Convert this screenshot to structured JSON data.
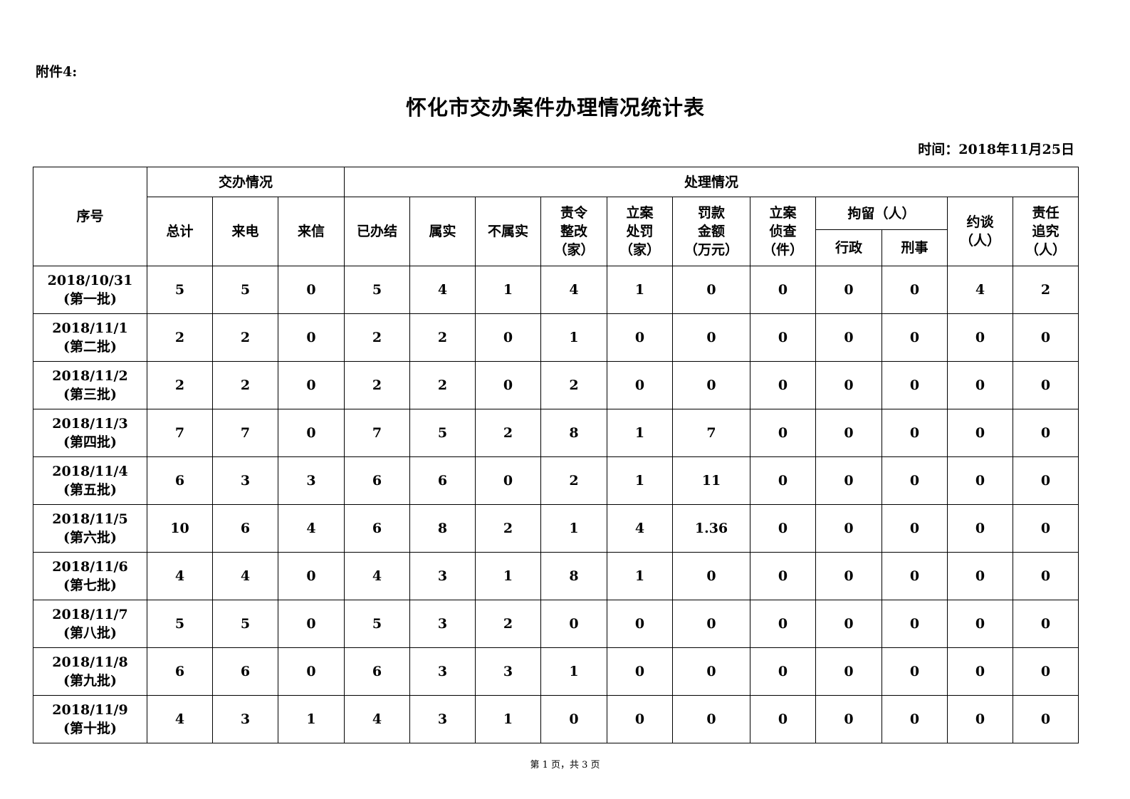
{
  "attachment_label": "附件4:",
  "title": "怀化市交办案件办理情况统计表",
  "date_label": "时间：2018年11月25日",
  "headers": {
    "seq": "序号",
    "assigned_group": "交办情况",
    "handled_group": "处理情况",
    "total": "总计",
    "phone": "来电",
    "letter": "来信",
    "closed": "已办结",
    "true": "属实",
    "not_true": "不属实",
    "ordered_rectify": "责令\n整改\n（家）",
    "case_penalty": "立案\n处罚\n（家）",
    "fine_amount": "罚款\n金额\n（万元）",
    "case_investigate": "立案\n侦查\n（件）",
    "detention_group": "拘留（人）",
    "admin": "行政",
    "criminal": "刑事",
    "interview": "约谈\n（人）",
    "accountability": "责任\n追究\n（人）"
  },
  "rows": [
    {
      "seq": "2018/10/31\n(第一批)",
      "values": [
        "5",
        "5",
        "0",
        "5",
        "4",
        "1",
        "4",
        "1",
        "0",
        "0",
        "0",
        "0",
        "4",
        "2"
      ]
    },
    {
      "seq": "2018/11/1\n(第二批)",
      "values": [
        "2",
        "2",
        "0",
        "2",
        "2",
        "0",
        "1",
        "0",
        "0",
        "0",
        "0",
        "0",
        "0",
        "0"
      ]
    },
    {
      "seq": "2018/11/2\n(第三批)",
      "values": [
        "2",
        "2",
        "0",
        "2",
        "2",
        "0",
        "2",
        "0",
        "0",
        "0",
        "0",
        "0",
        "0",
        "0"
      ]
    },
    {
      "seq": "2018/11/3\n(第四批)",
      "values": [
        "7",
        "7",
        "0",
        "7",
        "5",
        "2",
        "8",
        "1",
        "7",
        "0",
        "0",
        "0",
        "0",
        "0"
      ]
    },
    {
      "seq": "2018/11/4\n(第五批)",
      "values": [
        "6",
        "3",
        "3",
        "6",
        "6",
        "0",
        "2",
        "1",
        "11",
        "0",
        "0",
        "0",
        "0",
        "0"
      ]
    },
    {
      "seq": "2018/11/5\n(第六批)",
      "values": [
        "10",
        "6",
        "4",
        "6",
        "8",
        "2",
        "1",
        "4",
        "1.36",
        "0",
        "0",
        "0",
        "0",
        "0"
      ]
    },
    {
      "seq": "2018/11/6\n(第七批)",
      "values": [
        "4",
        "4",
        "0",
        "4",
        "3",
        "1",
        "8",
        "1",
        "0",
        "0",
        "0",
        "0",
        "0",
        "0"
      ]
    },
    {
      "seq": "2018/11/7\n(第八批)",
      "values": [
        "5",
        "5",
        "0",
        "5",
        "3",
        "2",
        "0",
        "0",
        "0",
        "0",
        "0",
        "0",
        "0",
        "0"
      ]
    },
    {
      "seq": "2018/11/8\n(第九批)",
      "values": [
        "6",
        "6",
        "0",
        "6",
        "3",
        "3",
        "1",
        "0",
        "0",
        "0",
        "0",
        "0",
        "0",
        "0"
      ]
    },
    {
      "seq": "2018/11/9\n(第十批)",
      "values": [
        "4",
        "3",
        "1",
        "4",
        "3",
        "1",
        "0",
        "0",
        "0",
        "0",
        "0",
        "0",
        "0",
        "0"
      ]
    }
  ],
  "footer": "第 1 页，共 3 页"
}
